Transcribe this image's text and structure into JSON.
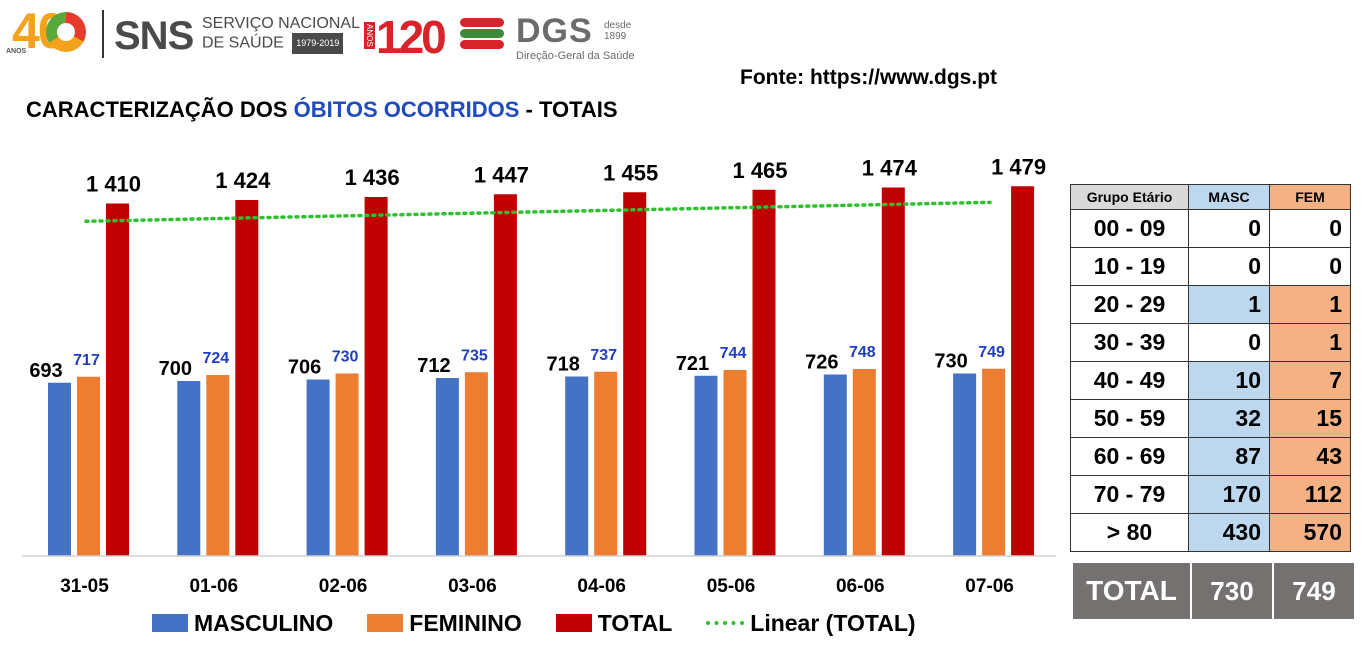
{
  "header": {
    "logo40_digits": "40",
    "logo40_anos": "ANOS",
    "sns_mark": "SNS",
    "sns_line1": "SERVIÇO NACIONAL",
    "sns_line2": "DE SAÚDE",
    "sns_years": "1979-2019",
    "logo120_digits": "120",
    "logo120_anos": "ANOS",
    "dgs_mark": "DGS",
    "dgs_since_1": "desde",
    "dgs_since_2": "1899",
    "dgs_subtitle": "Direção-Geral da Saúde"
  },
  "source": "Fonte: https://www.dgs.pt",
  "title_parts": {
    "before": "CARACTERIZAÇÃO DOS ",
    "highlight": "ÓBITOS OCORRIDOS",
    "after": " - TOTAIS"
  },
  "colors": {
    "masculino": "#4472c4",
    "feminino": "#ed7d31",
    "total": "#c00000",
    "trend": "#2fc02f",
    "fem_label": "#1f3fbf",
    "title_highlight": "#1f4bbd"
  },
  "chart_data": {
    "type": "bar",
    "categories": [
      "31-05",
      "01-06",
      "02-06",
      "03-06",
      "04-06",
      "05-06",
      "06-06",
      "07-06"
    ],
    "series": [
      {
        "name": "MASCULINO",
        "values": [
          693,
          700,
          706,
          712,
          718,
          721,
          726,
          730
        ]
      },
      {
        "name": "FEMININO",
        "values": [
          717,
          724,
          730,
          735,
          737,
          744,
          748,
          749
        ]
      },
      {
        "name": "TOTAL",
        "values": [
          1410,
          1424,
          1436,
          1447,
          1455,
          1465,
          1474,
          1479
        ]
      }
    ],
    "total_labels": [
      "1 410",
      "1 424",
      "1 436",
      "1 447",
      "1 455",
      "1 465",
      "1 474",
      "1 479"
    ],
    "trendline": {
      "name": "Linear (TOTAL)",
      "type": "linear",
      "of_series": "TOTAL"
    },
    "ylim": [
      0,
      1500
    ],
    "grid": false,
    "legend_position": "bottom"
  },
  "legend": [
    {
      "label": "MASCULINO",
      "type": "swatch",
      "color": "#4472c4"
    },
    {
      "label": "FEMININO",
      "type": "swatch",
      "color": "#ed7d31"
    },
    {
      "label": "TOTAL",
      "type": "swatch",
      "color": "#c00000"
    },
    {
      "label": "Linear (TOTAL)",
      "type": "dotted-line",
      "color": "#2fc02f"
    }
  ],
  "age_table": {
    "headers": [
      "Grupo Etário",
      "MASC",
      "FEM"
    ],
    "rows": [
      {
        "group": "00 - 09",
        "masc": "0",
        "fem": "0",
        "shaded": false
      },
      {
        "group": "10 - 19",
        "masc": "0",
        "fem": "0",
        "shaded": false
      },
      {
        "group": "20 - 29",
        "masc": "1",
        "fem": "1",
        "shaded": true
      },
      {
        "group": "30 - 39",
        "masc": "0",
        "fem": "1",
        "shaded": "fem"
      },
      {
        "group": "40 - 49",
        "masc": "10",
        "fem": "7",
        "shaded": true
      },
      {
        "group": "50 - 59",
        "masc": "32",
        "fem": "15",
        "shaded": true
      },
      {
        "group": "60 - 69",
        "masc": "87",
        "fem": "43",
        "shaded": true
      },
      {
        "group": "70 - 79",
        "masc": "170",
        "fem": "112",
        "shaded": true
      },
      {
        "group": "> 80",
        "masc": "430",
        "fem": "570",
        "shaded": true
      }
    ],
    "total": {
      "label": "TOTAL",
      "masc": "730",
      "fem": "749"
    }
  }
}
